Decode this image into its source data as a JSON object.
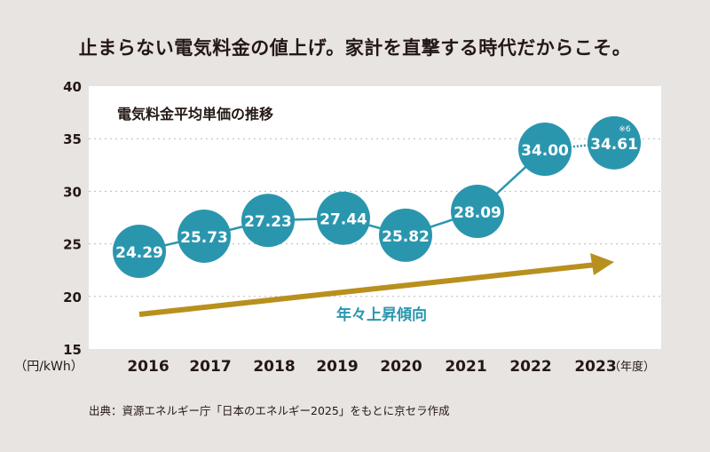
{
  "title": "止まらない電気料金の値上げ。家計を直撃する時代だからこそ。",
  "source": "出典：資源エネルギー庁「日本のエネルギー2025」をもとに京セラ作成",
  "chart_data": {
    "type": "line",
    "title": "電気料金平均単価の推移",
    "xlabel": "（年度）",
    "ylabel": "（円/kWh）",
    "ylim": [
      15,
      40
    ],
    "yticks": [
      "15",
      "20",
      "25",
      "30",
      "35",
      "40"
    ],
    "categories": [
      "2016",
      "2017",
      "2018",
      "2019",
      "2020",
      "2021",
      "2022",
      "2023"
    ],
    "values": [
      24.29,
      25.73,
      27.23,
      27.44,
      25.82,
      28.09,
      34.0,
      34.61
    ],
    "labels": [
      "24.29",
      "25.73",
      "27.23",
      "27.44",
      "25.82",
      "28.09",
      "34.00",
      "34.61"
    ],
    "note": "※6",
    "trend_label": "年々上昇傾向",
    "grid": true,
    "colors": {
      "series": "#2a96ae",
      "trend": "#b8901e"
    }
  }
}
